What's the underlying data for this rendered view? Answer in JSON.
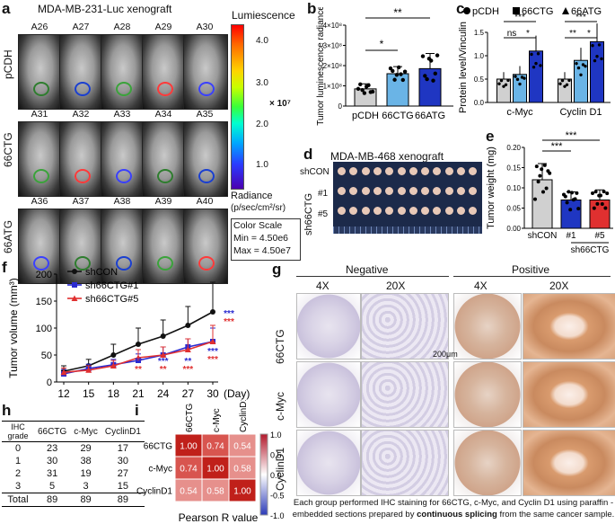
{
  "panel_a": {
    "letter": "a",
    "title": "MDA-MB-231-Luc xenograft",
    "groups": [
      {
        "label": "pCDH",
        "mice": [
          "A26",
          "A27",
          "A28",
          "A29",
          "A30"
        ]
      },
      {
        "label": "66CTG",
        "mice": [
          "A31",
          "A32",
          "A33",
          "A34",
          "A35"
        ]
      },
      {
        "label": "66ATG",
        "mice": [
          "A36",
          "A37",
          "A38",
          "A39",
          "A40"
        ]
      }
    ],
    "colorbar_title": "Lumiescence",
    "colorbar_ticks": [
      "4.0",
      "3.0",
      "2.0",
      "1.0"
    ],
    "colorbar_unit": "× 10⁷",
    "radiance_label": "Radiance",
    "radiance_unit": "(p/sec/cm²/sr)",
    "scale_title": "Color Scale",
    "scale_min": "Min = 4.50e6",
    "scale_max": "Max = 4.50e7"
  },
  "panel_b": {
    "letter": "b",
    "sig1": "*",
    "sig2": "**",
    "chart_data": {
      "type": "bar",
      "categories": [
        "pCDH",
        "66CTG",
        "66ATG"
      ],
      "values": [
        0.85,
        1.6,
        1.85
      ],
      "errors": [
        0.25,
        0.35,
        0.75
      ],
      "ylabel": "Tumor luminescence radiance",
      "yticks": [
        "0",
        "1×10⁸",
        "2×10⁸",
        "3×10⁸",
        "4×10⁸"
      ],
      "ylim": [
        0,
        4
      ],
      "colors": [
        "#d0d0d0",
        "#6ab4e6",
        "#1f36c2"
      ]
    }
  },
  "panel_c": {
    "letter": "c",
    "legend": [
      "pCDH",
      "66CTG",
      "66ATG"
    ],
    "sigs": [
      "***",
      "ns",
      "*",
      "***",
      "**",
      "*"
    ],
    "chart_data": {
      "type": "bar",
      "categories": [
        "c-Myc",
        "Cyclin D1"
      ],
      "series": [
        {
          "name": "pCDH",
          "values": [
            0.5,
            0.5
          ],
          "color": "#d0d0d0"
        },
        {
          "name": "66CTG",
          "values": [
            0.6,
            0.9
          ],
          "color": "#6ab4e6"
        },
        {
          "name": "66ATG",
          "values": [
            1.1,
            1.3
          ],
          "color": "#1f36c2"
        }
      ],
      "ylabel": "Protein level/Vinculin",
      "yticks": [
        "0.0",
        "0.5",
        "1.0",
        "1.5"
      ],
      "ylim": [
        0,
        1.5
      ]
    }
  },
  "panel_d": {
    "letter": "d",
    "title": "MDA-MB-468 xenograft",
    "rows": [
      "shCON",
      "#1",
      "#5"
    ],
    "group_label": "sh66CTG"
  },
  "panel_e": {
    "letter": "e",
    "sigs": [
      "***",
      "***"
    ],
    "group_label": "sh66CTG",
    "chart_data": {
      "type": "bar",
      "categories": [
        "shCON",
        "#1",
        "#5"
      ],
      "values": [
        0.12,
        0.07,
        0.07
      ],
      "errors": [
        0.04,
        0.02,
        0.025
      ],
      "ylabel": "Tumor weight (mg)",
      "yticks": [
        "0.00",
        "0.05",
        "0.10",
        "0.15",
        "0.20"
      ],
      "ylim": [
        0,
        0.2
      ],
      "colors": [
        "#d0d0d0",
        "#1f36c2",
        "#e03030"
      ]
    }
  },
  "panel_f": {
    "letter": "f",
    "xunit": "(Day)",
    "chart_data": {
      "type": "line",
      "x": [
        12,
        15,
        18,
        21,
        24,
        27,
        30
      ],
      "series": [
        {
          "name": "shCON",
          "values": [
            20,
            30,
            50,
            70,
            85,
            105,
            130
          ],
          "errors": [
            10,
            12,
            20,
            30,
            30,
            35,
            55
          ],
          "color": "#111111",
          "marker": "circle"
        },
        {
          "name": "sh66CTG#1",
          "values": [
            15,
            25,
            32,
            40,
            50,
            65,
            75
          ],
          "errors": [
            8,
            8,
            10,
            12,
            15,
            15,
            25
          ],
          "color": "#2a2ad0",
          "marker": "square"
        },
        {
          "name": "sh66CTG#5",
          "values": [
            18,
            22,
            30,
            45,
            50,
            60,
            75
          ],
          "errors": [
            8,
            8,
            10,
            15,
            15,
            20,
            30
          ],
          "color": "#e03030",
          "marker": "triangle"
        }
      ],
      "ylabel": "Tumor volume (mm³)",
      "yticks": [
        "0",
        "50",
        "100",
        "150",
        "200"
      ],
      "ylim": [
        0,
        200
      ],
      "sig_blue": [
        "**",
        "***",
        "**",
        "***",
        "***"
      ],
      "sig_red": [
        "**",
        "**",
        "***",
        "***",
        "***"
      ]
    }
  },
  "panel_g": {
    "letter": "g",
    "negative": "Negative",
    "positive": "Positive",
    "mags": [
      "4X",
      "20X",
      "4X",
      "20X"
    ],
    "rows": [
      "66CTG",
      "c-Myc",
      "CyclinD1"
    ],
    "scalebar": "200μm",
    "caption_before": "Each group performed IHC staining for 66CTG, c-Myc, and Cyclin D1 using paraffin -embedded sections prepared by ",
    "caption_bold": "continuous splicing",
    "caption_after": " from the same cancer sample."
  },
  "panel_h": {
    "letter": "h",
    "headers": [
      "IHC grade",
      "66CTG",
      "c-Myc",
      "CyclinD1"
    ],
    "rows": [
      [
        "0",
        "23",
        "29",
        "17"
      ],
      [
        "1",
        "30",
        "38",
        "30"
      ],
      [
        "2",
        "31",
        "19",
        "27"
      ],
      [
        "3",
        "5",
        "3",
        "15"
      ],
      [
        "Total",
        "89",
        "89",
        "89"
      ]
    ]
  },
  "panel_i": {
    "letter": "i",
    "labels": [
      "66CTG",
      "c-Myc",
      "CyclinD1"
    ],
    "matrix": [
      [
        "1.00",
        "0.74",
        "0.54"
      ],
      [
        "0.74",
        "1.00",
        "0.58"
      ],
      [
        "0.54",
        "0.58",
        "1.00"
      ]
    ],
    "scale_ticks": [
      "1.0",
      "0.5",
      "0.0",
      "-0.5",
      "-1.0"
    ],
    "xlabel": "Pearson R value"
  }
}
